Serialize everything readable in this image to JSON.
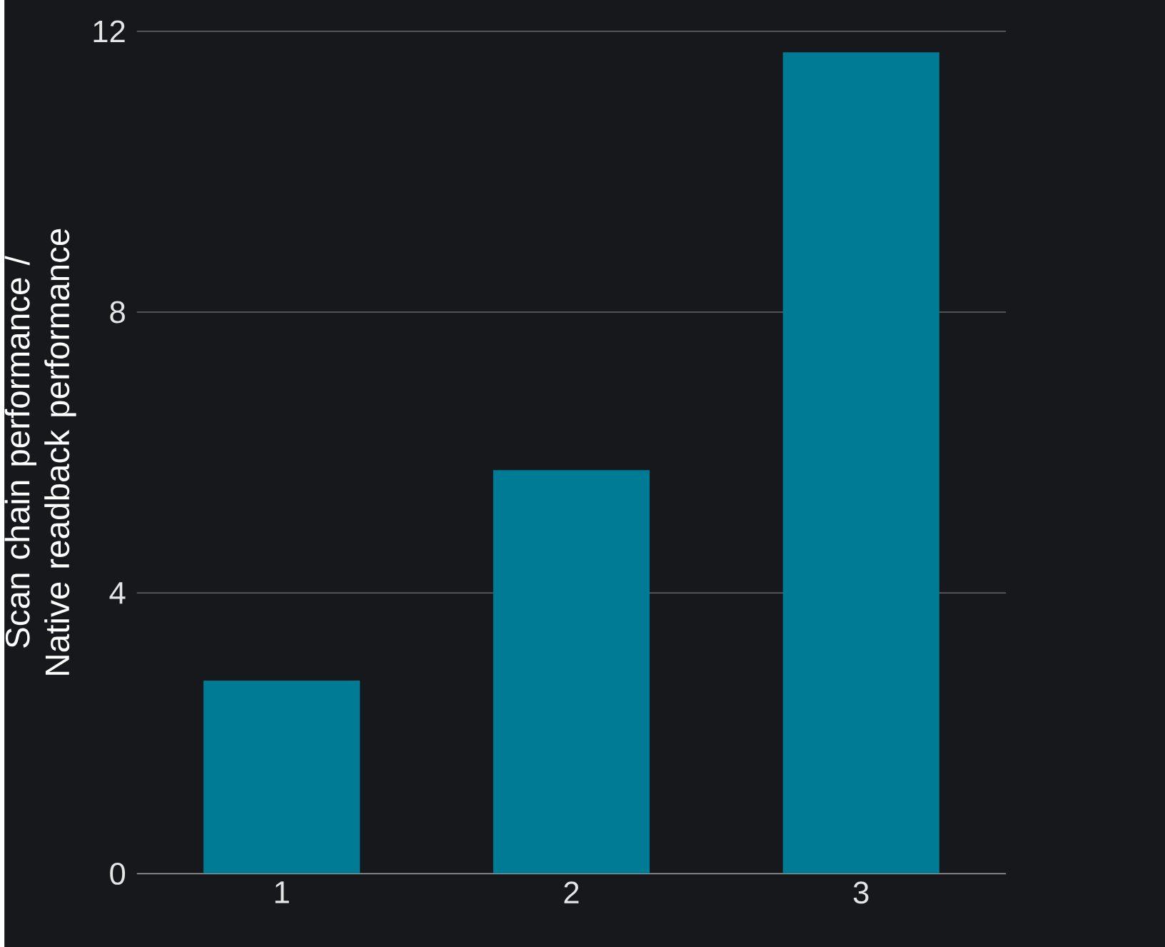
{
  "chart_data": {
    "type": "bar",
    "ylabel": "Scan chain performance / Native readback performance",
    "categories": [
      "1",
      "2",
      "3"
    ],
    "values": [
      2.75,
      5.75,
      11.7
    ],
    "color": "#007b96",
    "ylim": [
      0,
      12
    ],
    "yticks": [
      0,
      4,
      8,
      12
    ],
    "grid": "y"
  }
}
